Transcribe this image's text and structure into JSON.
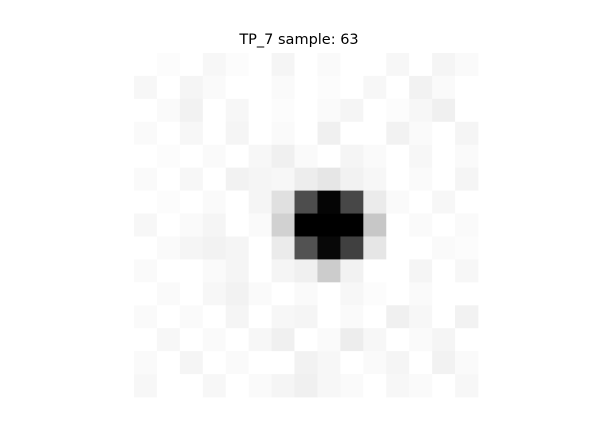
{
  "title": "TP_7 sample: 63",
  "image": {
    "colormap": "gray_r",
    "rows": 15,
    "cols": 15,
    "pixels": [
      [
        0.0,
        0.01,
        0.0,
        0.03,
        0.01,
        0.0,
        0.04,
        0.0,
        0.02,
        0.0,
        0.0,
        0.03,
        0.0,
        0.04,
        0.02
      ],
      [
        0.03,
        0.0,
        0.04,
        0.02,
        0.0,
        0.0,
        0.02,
        0.0,
        0.01,
        0.0,
        0.03,
        0.0,
        0.05,
        0.02,
        0.0
      ],
      [
        0.0,
        0.02,
        0.05,
        0.0,
        0.03,
        0.0,
        0.01,
        0.0,
        0.02,
        0.04,
        0.0,
        0.01,
        0.03,
        0.06,
        0.0
      ],
      [
        0.02,
        0.0,
        0.03,
        0.0,
        0.04,
        0.0,
        0.02,
        0.0,
        0.06,
        0.0,
        0.0,
        0.05,
        0.02,
        0.0,
        0.04
      ],
      [
        0.0,
        0.01,
        0.0,
        0.02,
        0.0,
        0.03,
        0.06,
        0.02,
        0.0,
        0.04,
        0.02,
        0.0,
        0.03,
        0.0,
        0.02
      ],
      [
        0.02,
        0.0,
        0.03,
        0.0,
        0.05,
        0.04,
        0.03,
        0.07,
        0.1,
        0.05,
        0.03,
        0.0,
        0.02,
        0.0,
        0.04
      ],
      [
        0.0,
        0.01,
        0.0,
        0.02,
        0.0,
        0.04,
        0.12,
        0.7,
        0.98,
        0.72,
        0.08,
        0.02,
        0.0,
        0.03,
        0.0
      ],
      [
        0.03,
        0.0,
        0.02,
        0.04,
        0.0,
        0.02,
        0.18,
        1.0,
        1.0,
        1.0,
        0.22,
        0.0,
        0.02,
        0.0,
        0.02
      ],
      [
        0.0,
        0.02,
        0.04,
        0.05,
        0.04,
        0.0,
        0.08,
        0.68,
        0.97,
        0.75,
        0.1,
        0.0,
        0.0,
        0.02,
        0.01
      ],
      [
        0.02,
        0.0,
        0.0,
        0.02,
        0.04,
        0.0,
        0.04,
        0.06,
        0.2,
        0.05,
        0.0,
        0.0,
        0.04,
        0.0,
        0.03
      ],
      [
        0.0,
        0.02,
        0.0,
        0.03,
        0.05,
        0.02,
        0.0,
        0.02,
        0.0,
        0.03,
        0.01,
        0.0,
        0.02,
        0.0,
        0.0
      ],
      [
        0.02,
        0.0,
        0.02,
        0.0,
        0.04,
        0.0,
        0.03,
        0.04,
        0.0,
        0.02,
        0.0,
        0.06,
        0.03,
        0.0,
        0.05
      ],
      [
        0.0,
        0.03,
        0.0,
        0.02,
        0.0,
        0.03,
        0.06,
        0.0,
        0.02,
        0.07,
        0.03,
        0.0,
        0.02,
        0.04,
        0.0
      ],
      [
        0.02,
        0.0,
        0.04,
        0.0,
        0.02,
        0.0,
        0.0,
        0.05,
        0.03,
        0.0,
        0.02,
        0.04,
        0.0,
        0.05,
        0.02
      ],
      [
        0.03,
        0.0,
        0.0,
        0.03,
        0.0,
        0.02,
        0.04,
        0.06,
        0.03,
        0.02,
        0.0,
        0.03,
        0.02,
        0.0,
        0.03
      ]
    ]
  }
}
